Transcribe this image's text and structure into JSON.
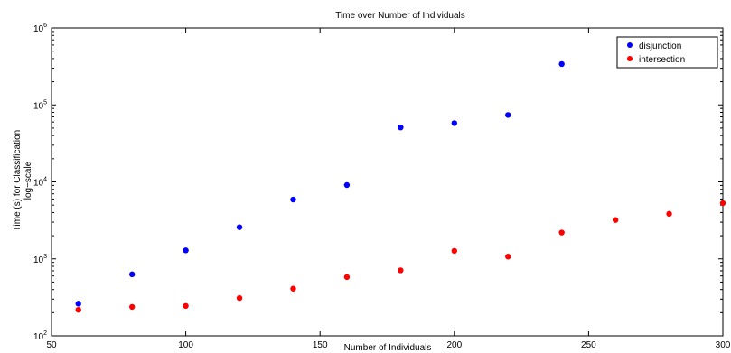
{
  "chart_data": {
    "type": "scatter",
    "title": "Time over Number of Individuals",
    "xlabel": "Number of Individuals",
    "ylabel_lines": [
      "Time (s) for Classification",
      "log−scale"
    ],
    "xlim": [
      50,
      300
    ],
    "ylim": [
      100,
      1000000
    ],
    "yscale": "log",
    "grid": false,
    "legend_position": "top-right",
    "x_ticks": [
      50,
      100,
      150,
      200,
      250,
      300
    ],
    "x_tick_labels": [
      "50",
      "100",
      "150",
      "200",
      "250",
      "300"
    ],
    "y_ticks": [
      {
        "value": 100,
        "base": "10",
        "exp": "2"
      },
      {
        "value": 1000,
        "base": "10",
        "exp": "3"
      },
      {
        "value": 10000,
        "base": "10",
        "exp": "4"
      },
      {
        "value": 100000,
        "base": "10",
        "exp": "5"
      },
      {
        "value": 1000000,
        "base": "10",
        "exp": "6"
      }
    ],
    "series": [
      {
        "name": "disjunction",
        "color": "#0000ff",
        "x": [
          60,
          80,
          100,
          120,
          140,
          160,
          180,
          200,
          220,
          240
        ],
        "y": [
          262,
          630,
          1290,
          2580,
          5900,
          9100,
          51000,
          58000,
          74000,
          340000
        ]
      },
      {
        "name": "intersection",
        "color": "#ff0000",
        "x": [
          60,
          80,
          100,
          120,
          140,
          160,
          180,
          200,
          220,
          240,
          260,
          280,
          300
        ],
        "y": [
          218,
          238,
          245,
          310,
          410,
          580,
          710,
          1270,
          1070,
          2200,
          3200,
          3850,
          5300
        ]
      }
    ]
  }
}
